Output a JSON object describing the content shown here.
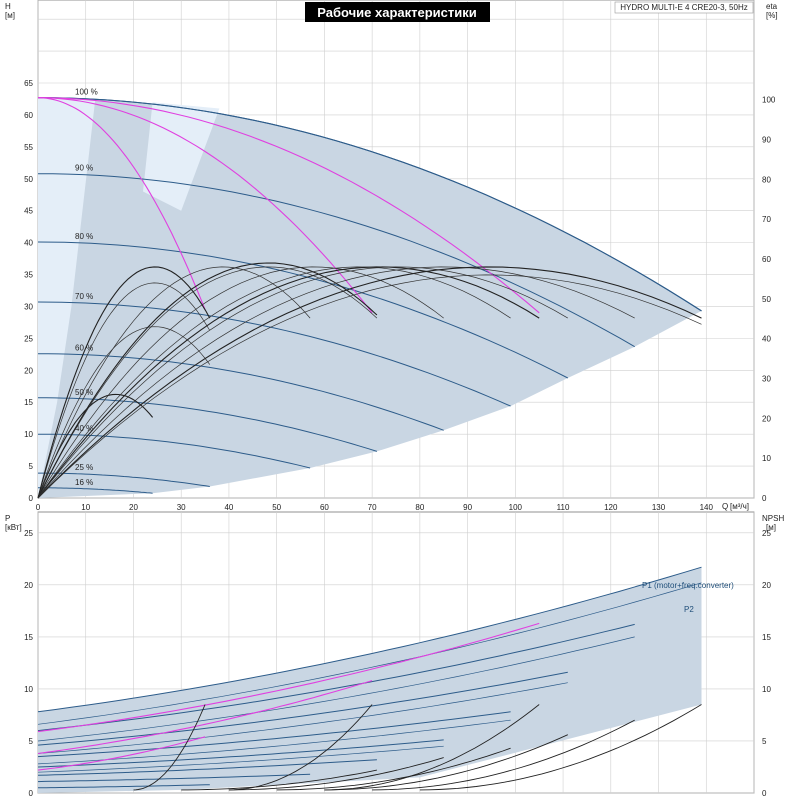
{
  "title": "Рабочие характеристики",
  "model": "HYDRO MULTI-E 4 CRE20-3, 50Hz",
  "colors": {
    "envelope": "#c9d6e3",
    "envelope_light": "#e4eef8",
    "grid": "#cfcfcf",
    "speed_curve": "#2d5c8a",
    "single_pump": "#222222",
    "magenta": "#e040e0",
    "eta_curve": "#333333",
    "label_blue": "#1f4e79"
  },
  "chart_data": [
    {
      "type": "line",
      "name_axis_left": "H",
      "unit_left": "[м]",
      "name_axis_right": "eta",
      "unit_right": "[%]",
      "xlabel": "Q",
      "xunit": "[м³/ч]",
      "xlim": [
        0,
        150
      ],
      "ylim": [
        0,
        78
      ],
      "eta_lim": [
        0,
        125
      ],
      "x_ticks": [
        0,
        10,
        20,
        30,
        40,
        50,
        60,
        70,
        80,
        90,
        100,
        110,
        120,
        130,
        140
      ],
      "y_ticks": [
        0,
        5,
        10,
        15,
        20,
        25,
        30,
        35,
        40,
        45,
        50,
        55,
        60,
        65
      ],
      "eta_ticks": [
        0,
        10,
        20,
        30,
        40,
        50,
        60,
        70,
        80,
        90,
        100
      ],
      "speed_curves": [
        {
          "label": "100 %",
          "h0": 62.7,
          "qmax": 139,
          "hend": 29.3
        },
        {
          "label": "90 %",
          "h0": 50.8,
          "qmax": 125,
          "hend": 23.7
        },
        {
          "label": "80 %",
          "h0": 40.1,
          "qmax": 111,
          "hend": 18.8
        },
        {
          "label": "70 %",
          "h0": 30.7,
          "qmax": 99,
          "hend": 14.4
        },
        {
          "label": "60 %",
          "h0": 22.6,
          "qmax": 85,
          "hend": 10.6
        },
        {
          "label": "50 %",
          "h0": 15.7,
          "qmax": 71,
          "hend": 7.3
        },
        {
          "label": "40 %",
          "h0": 10.0,
          "qmax": 57,
          "hend": 4.7
        },
        {
          "label": "25 %",
          "h0": 3.9,
          "qmax": 36,
          "hend": 1.8
        },
        {
          "label": "16 %",
          "h0": 1.6,
          "qmax": 24,
          "hend": 0.75
        }
      ],
      "magenta_curves": [
        {
          "h0": 62.7,
          "qend": 35,
          "hend": 29.5
        },
        {
          "h0": 62.7,
          "qend": 70,
          "hend": 29.0
        },
        {
          "h0": 62.7,
          "qend": 105,
          "hend": 29.0
        }
      ],
      "eta_peaks": [
        {
          "qmax": 24,
          "peak": 26
        },
        {
          "qmax": 36,
          "peak": 43
        },
        {
          "qmax": 36,
          "peak": 54
        },
        {
          "qmax": 36,
          "peak": 58
        },
        {
          "qmax": 57,
          "peak": 58
        },
        {
          "qmax": 71,
          "peak": 58
        },
        {
          "qmax": 71,
          "peak": 59
        },
        {
          "qmax": 85,
          "peak": 58
        },
        {
          "qmax": 99,
          "peak": 58
        },
        {
          "qmax": 105,
          "peak": 58
        },
        {
          "qmax": 111,
          "peak": 58
        },
        {
          "qmax": 125,
          "peak": 58
        },
        {
          "qmax": 139,
          "peak": 58
        },
        {
          "qmax": 139,
          "peak": 56
        }
      ]
    },
    {
      "type": "line",
      "name_axis_left": "P",
      "unit_left": "[кВт]",
      "name_axis_right": "NPSH",
      "unit_right": "[м]",
      "xlim": [
        0,
        150
      ],
      "ylim": [
        0,
        27
      ],
      "y_ticks": [
        0,
        5,
        10,
        15,
        20,
        25
      ],
      "series_labels": [
        "P1 (motor+freq.converter)",
        "P2"
      ],
      "p1_curves": [
        {
          "qmax": 139,
          "p0": 7.8,
          "pend": 21.7
        },
        {
          "qmax": 125,
          "p0": 6.0,
          "pend": 16.2
        },
        {
          "qmax": 111,
          "p0": 4.6,
          "pend": 11.6
        },
        {
          "qmax": 99,
          "p0": 3.5,
          "pend": 7.8
        },
        {
          "qmax": 85,
          "p0": 2.5,
          "pend": 5.1
        },
        {
          "qmax": 71,
          "p0": 1.7,
          "pend": 3.2
        },
        {
          "qmax": 57,
          "p0": 1.1,
          "pend": 1.8
        },
        {
          "qmax": 36,
          "p0": 0.5,
          "pend": 0.8
        }
      ],
      "p2_curves": [
        {
          "qmax": 139,
          "p0": 6.6,
          "pend": 20.2
        },
        {
          "qmax": 125,
          "p0": 5.0,
          "pend": 15.0
        },
        {
          "qmax": 111,
          "p0": 3.8,
          "pend": 10.6
        },
        {
          "qmax": 99,
          "p0": 2.8,
          "pend": 7.0
        },
        {
          "qmax": 85,
          "p0": 2.0,
          "pend": 4.5
        }
      ],
      "magenta_curves": [
        {
          "qmax": 105,
          "p0": 5.9,
          "pend": 16.3
        },
        {
          "qmax": 70,
          "p0": 3.8,
          "pend": 10.8
        },
        {
          "qmax": 35,
          "p0": 2.2,
          "pend": 5.4
        }
      ],
      "npsh_curves": [
        {
          "qstart": 20,
          "qmax": 35,
          "nend": 8.5
        },
        {
          "qstart": 40,
          "qmax": 70,
          "nend": 8.5
        },
        {
          "qstart": 60,
          "qmax": 105,
          "nend": 8.5
        },
        {
          "qstart": 80,
          "qmax": 139,
          "nend": 8.5
        },
        {
          "qstart": 70,
          "qmax": 125,
          "nend": 7.0
        },
        {
          "qstart": 60,
          "qmax": 111,
          "nend": 5.6
        },
        {
          "qstart": 50,
          "qmax": 99,
          "nend": 4.3
        },
        {
          "qstart": 40,
          "qmax": 85,
          "nend": 3.4
        },
        {
          "qstart": 30,
          "qmax": 71,
          "nend": 2.2
        }
      ]
    }
  ]
}
